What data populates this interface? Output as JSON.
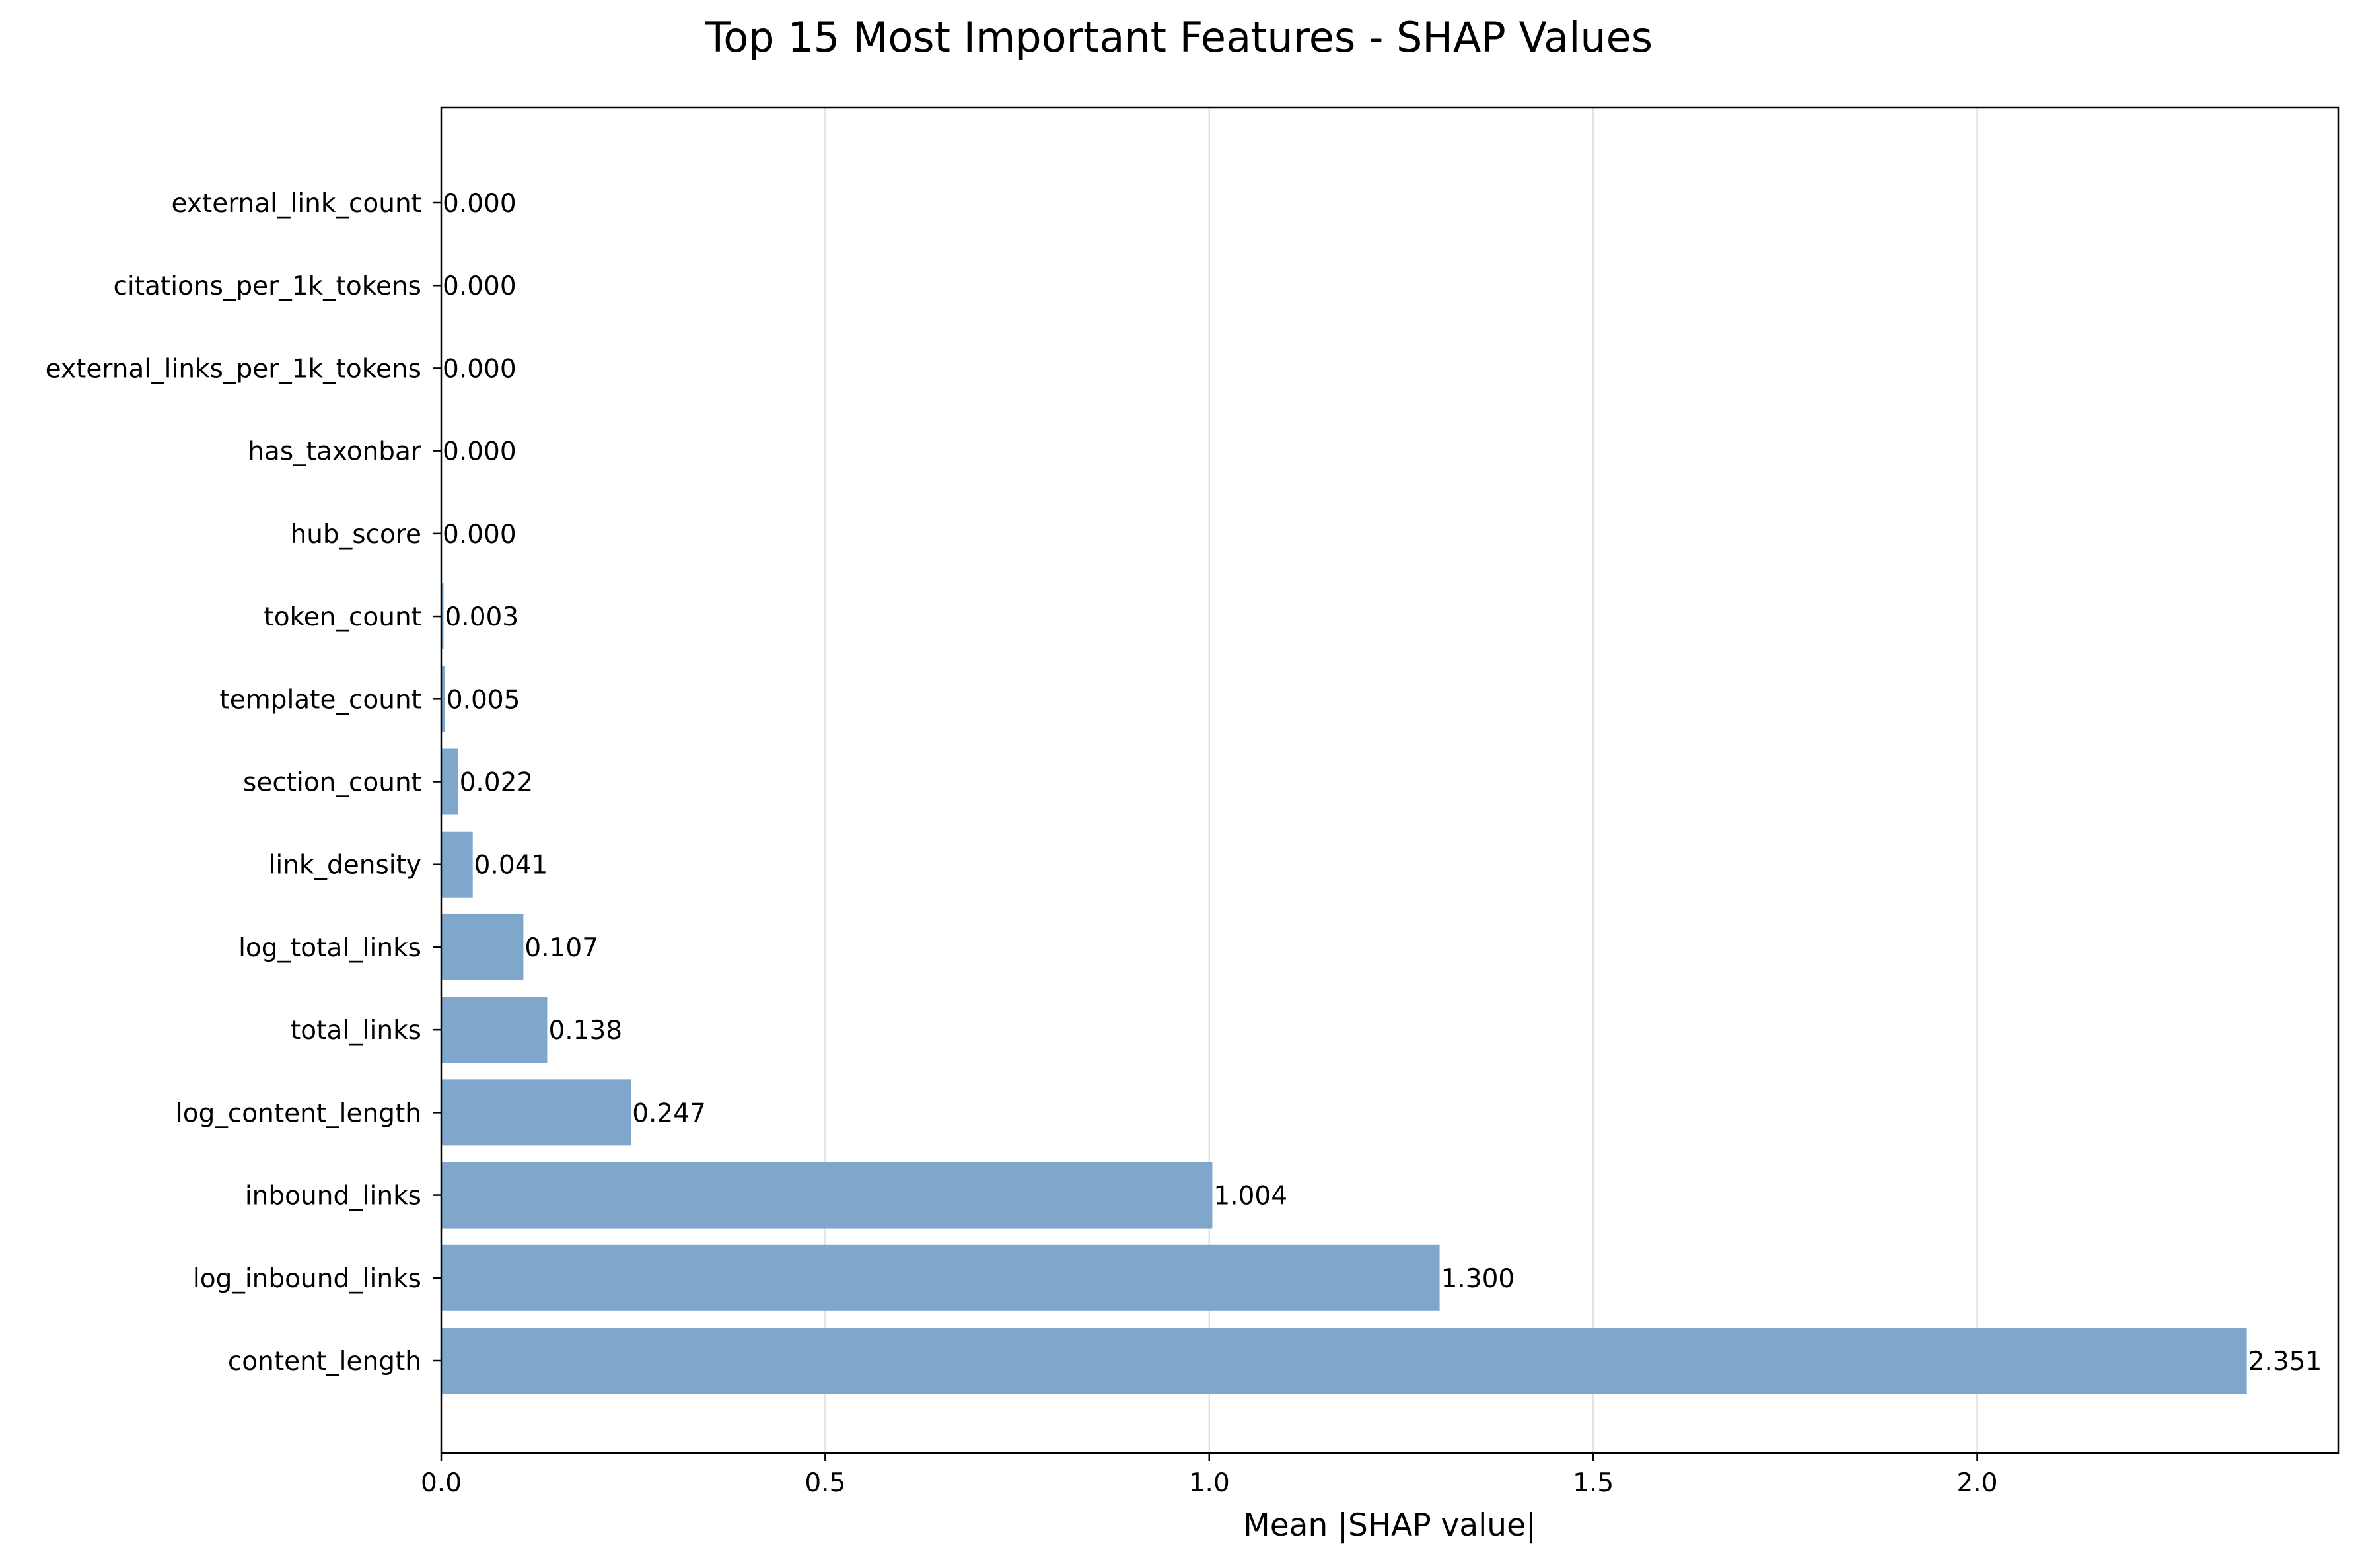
{
  "chart_data": {
    "type": "bar",
    "orientation": "horizontal",
    "title": "Top 15 Most Important Features - SHAP Values",
    "xlabel": "Mean |SHAP value|",
    "ylabel": "",
    "xlim": [
      0,
      2.47
    ],
    "x_ticks": [
      "0.0",
      "0.5",
      "1.0",
      "1.5",
      "2.0"
    ],
    "x_tick_values": [
      0,
      0.5,
      1.0,
      1.5,
      2.0
    ],
    "grid": "x-axis vertical lines",
    "bar_color": "#7ea7cb",
    "categories": [
      "content_length",
      "log_inbound_links",
      "inbound_links",
      "log_content_length",
      "total_links",
      "log_total_links",
      "link_density",
      "section_count",
      "template_count",
      "token_count",
      "hub_score",
      "has_taxonbar",
      "external_links_per_1k_tokens",
      "citations_per_1k_tokens",
      "external_link_count"
    ],
    "values": [
      2.351,
      1.3,
      1.004,
      0.247,
      0.138,
      0.107,
      0.041,
      0.022,
      0.005,
      0.003,
      0.0,
      0.0,
      0.0,
      0.0,
      0.0
    ],
    "value_labels": [
      "2.351",
      "1.300",
      "1.004",
      "0.247",
      "0.138",
      "0.107",
      "0.041",
      "0.022",
      "0.005",
      "0.003",
      "0.000",
      "0.000",
      "0.000",
      "0.000",
      "0.000"
    ]
  }
}
